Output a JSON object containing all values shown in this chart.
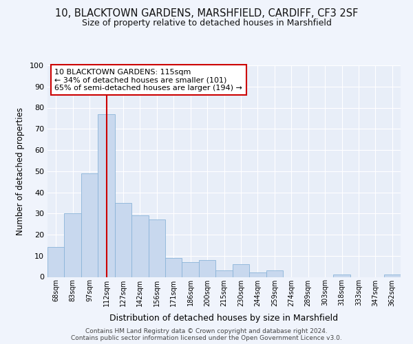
{
  "title1": "10, BLACKTOWN GARDENS, MARSHFIELD, CARDIFF, CF3 2SF",
  "title2": "Size of property relative to detached houses in Marshfield",
  "xlabel": "Distribution of detached houses by size in Marshfield",
  "ylabel": "Number of detached properties",
  "categories": [
    "68sqm",
    "83sqm",
    "97sqm",
    "112sqm",
    "127sqm",
    "142sqm",
    "156sqm",
    "171sqm",
    "186sqm",
    "200sqm",
    "215sqm",
    "230sqm",
    "244sqm",
    "259sqm",
    "274sqm",
    "289sqm",
    "303sqm",
    "318sqm",
    "333sqm",
    "347sqm",
    "362sqm"
  ],
  "values": [
    14,
    30,
    49,
    77,
    35,
    29,
    27,
    9,
    7,
    8,
    3,
    6,
    2,
    3,
    0,
    0,
    0,
    1,
    0,
    0,
    1
  ],
  "bar_color": "#c8d8ee",
  "bar_edge_color": "#8ab4d8",
  "vline_x": 3,
  "vline_color": "#cc0000",
  "annotation_text": "10 BLACKTOWN GARDENS: 115sqm\n← 34% of detached houses are smaller (101)\n65% of semi-detached houses are larger (194) →",
  "annotation_box_color": "#ffffff",
  "annotation_box_edge": "#cc0000",
  "bg_color": "#f0f4fc",
  "plot_bg_color": "#e8eef8",
  "grid_color": "#ffffff",
  "footer": "Contains HM Land Registry data © Crown copyright and database right 2024.\nContains public sector information licensed under the Open Government Licence v3.0.",
  "ylim": [
    0,
    100
  ],
  "yticks": [
    0,
    10,
    20,
    30,
    40,
    50,
    60,
    70,
    80,
    90,
    100
  ]
}
